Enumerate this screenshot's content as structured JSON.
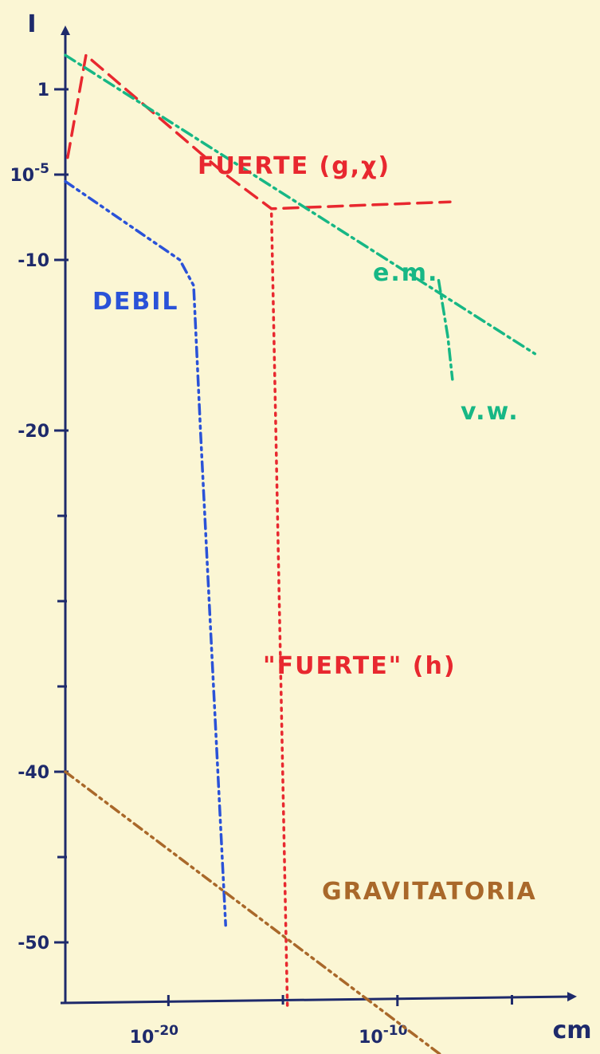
{
  "chart_data": {
    "type": "line",
    "ylabel": "I",
    "xlabel": "cm",
    "x_log10_range": [
      -24.5,
      -3
    ],
    "y_log10_range": [
      -57,
      4
    ],
    "y_ticks": [
      {
        "value": 0,
        "label": "1"
      },
      {
        "value": -5,
        "label": "10^-5"
      },
      {
        "value": -10,
        "label": "-10"
      },
      {
        "value": -20,
        "label": "-20"
      },
      {
        "value": -40,
        "label": "-40"
      },
      {
        "value": -50,
        "label": "-50"
      }
    ],
    "y_minor_ticks": [
      -25,
      -30,
      -35,
      -45
    ],
    "x_ticks": [
      {
        "value": -20,
        "label": "10^-20"
      },
      {
        "value": -10,
        "label": "10^-10"
      }
    ],
    "x_minor_ticks": [
      -15,
      -5
    ],
    "series": [
      {
        "name": "FUERTE (g,χ)",
        "color": "#e8282f",
        "style": "dashed",
        "x": [
          -24.4,
          -23.6,
          -17.5,
          -15.5,
          -7.7
        ],
        "y": [
          -4,
          2,
          -5,
          -7,
          -6.6
        ]
      },
      {
        "name": "e.m.",
        "color": "#17b785",
        "style": "dashdot",
        "x": [
          -24.5,
          -4.0
        ],
        "y": [
          2,
          -15.5
        ]
      },
      {
        "name": "v.w.",
        "color": "#17b785",
        "style": "dashdot",
        "x": [
          -8.2,
          -7.8,
          -7.6
        ],
        "y": [
          -11.2,
          -14.5,
          -17
        ]
      },
      {
        "name": "DEBIL",
        "color": "#2a52d8",
        "style": "dashdotdot",
        "x": [
          -24.5,
          -19.5,
          -18.9,
          -18.6,
          -17.5
        ],
        "y": [
          -5.4,
          -10,
          -11.5,
          -20,
          -49
        ]
      },
      {
        "name": "\"FUERTE\" (h)",
        "color": "#e8282f",
        "style": "dotted",
        "x": [
          -15.5,
          -14.8
        ],
        "y": [
          -7.3,
          -54
        ]
      },
      {
        "name": "GRAVITATORIA",
        "color": "#a9682a",
        "style": "dashdotdot",
        "x": [
          -24.5,
          -7.7
        ],
        "y": [
          -40,
          -57
        ]
      }
    ]
  }
}
